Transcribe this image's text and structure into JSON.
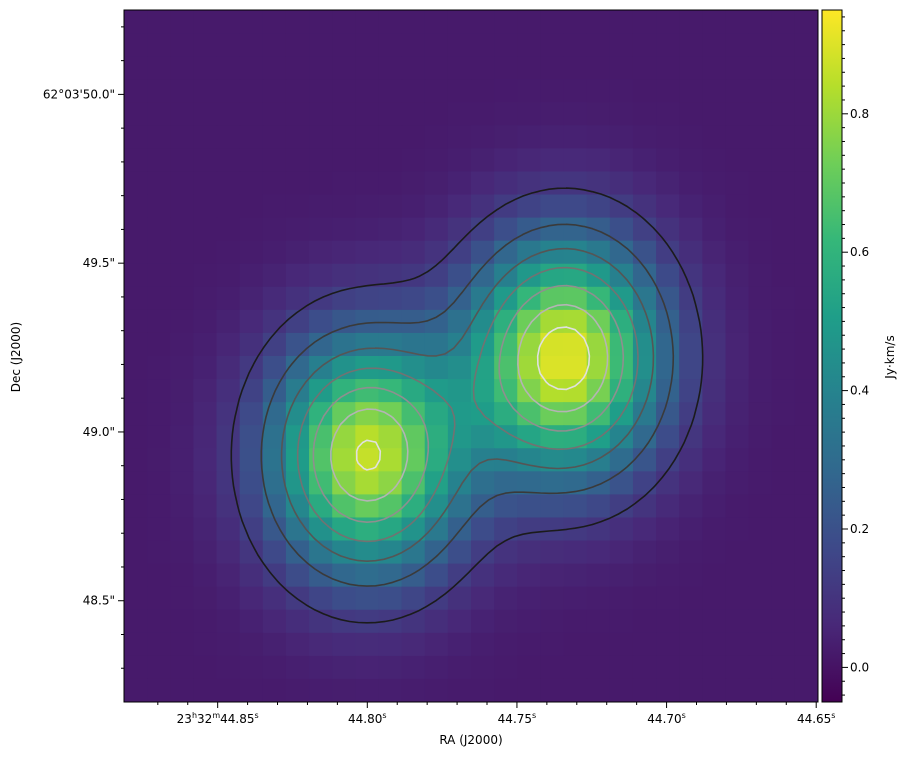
{
  "chart_data": {
    "type": "heatmap",
    "title": "",
    "xlabel": "RA (J2000)",
    "ylabel": "Dec (J2000)",
    "colorbar_label": "Jy·km/s",
    "colormap": "viridis",
    "colormap_stops": [
      "#440154",
      "#482878",
      "#3e4989",
      "#31688e",
      "#26828e",
      "#1f9e89",
      "#35b779",
      "#6ece58",
      "#b5de2b",
      "#fde725"
    ],
    "colorbar_range": [
      -0.05,
      0.95
    ],
    "colorbar_ticks": [
      {
        "value": 0.0,
        "label": "0.0"
      },
      {
        "value": 0.2,
        "label": "0.2"
      },
      {
        "value": 0.4,
        "label": "0.4"
      },
      {
        "value": 0.6,
        "label": "0.6"
      },
      {
        "value": 0.8,
        "label": "0.8"
      }
    ],
    "x_tick_labels": [
      {
        "label": "23h32m44.85s",
        "h": "23",
        "m": "32",
        "s": "44.85"
      },
      {
        "label": "44.80s",
        "s": "44.80"
      },
      {
        "label": "44.75s",
        "s": "44.75"
      },
      {
        "label": "44.70s",
        "s": "44.70"
      },
      {
        "label": "44.65s",
        "s": "44.65"
      }
    ],
    "y_tick_labels": [
      "62°03'50.0\"",
      "49.5\"",
      "49.0\"",
      "48.5\""
    ],
    "emission_peaks": [
      {
        "ra_s": 44.734,
        "dec_arcsec": 49.22,
        "value": 0.91,
        "sigma_ra_s": 0.022,
        "sigma_dec_arcsec": 0.24
      },
      {
        "ra_s": 44.8,
        "dec_arcsec": 48.93,
        "value": 0.86,
        "sigma_ra_s": 0.022,
        "sigma_dec_arcsec": 0.24
      }
    ],
    "background_level": 0.02,
    "contour_levels": [
      0.12,
      0.25,
      0.38,
      0.5,
      0.62,
      0.74,
      0.85
    ],
    "contour_colors": [
      "#1b1b1b",
      "#3a3a3a",
      "#555555",
      "#727272",
      "#8f8f8f",
      "#b4b4b4",
      "#e0e0e0"
    ]
  }
}
